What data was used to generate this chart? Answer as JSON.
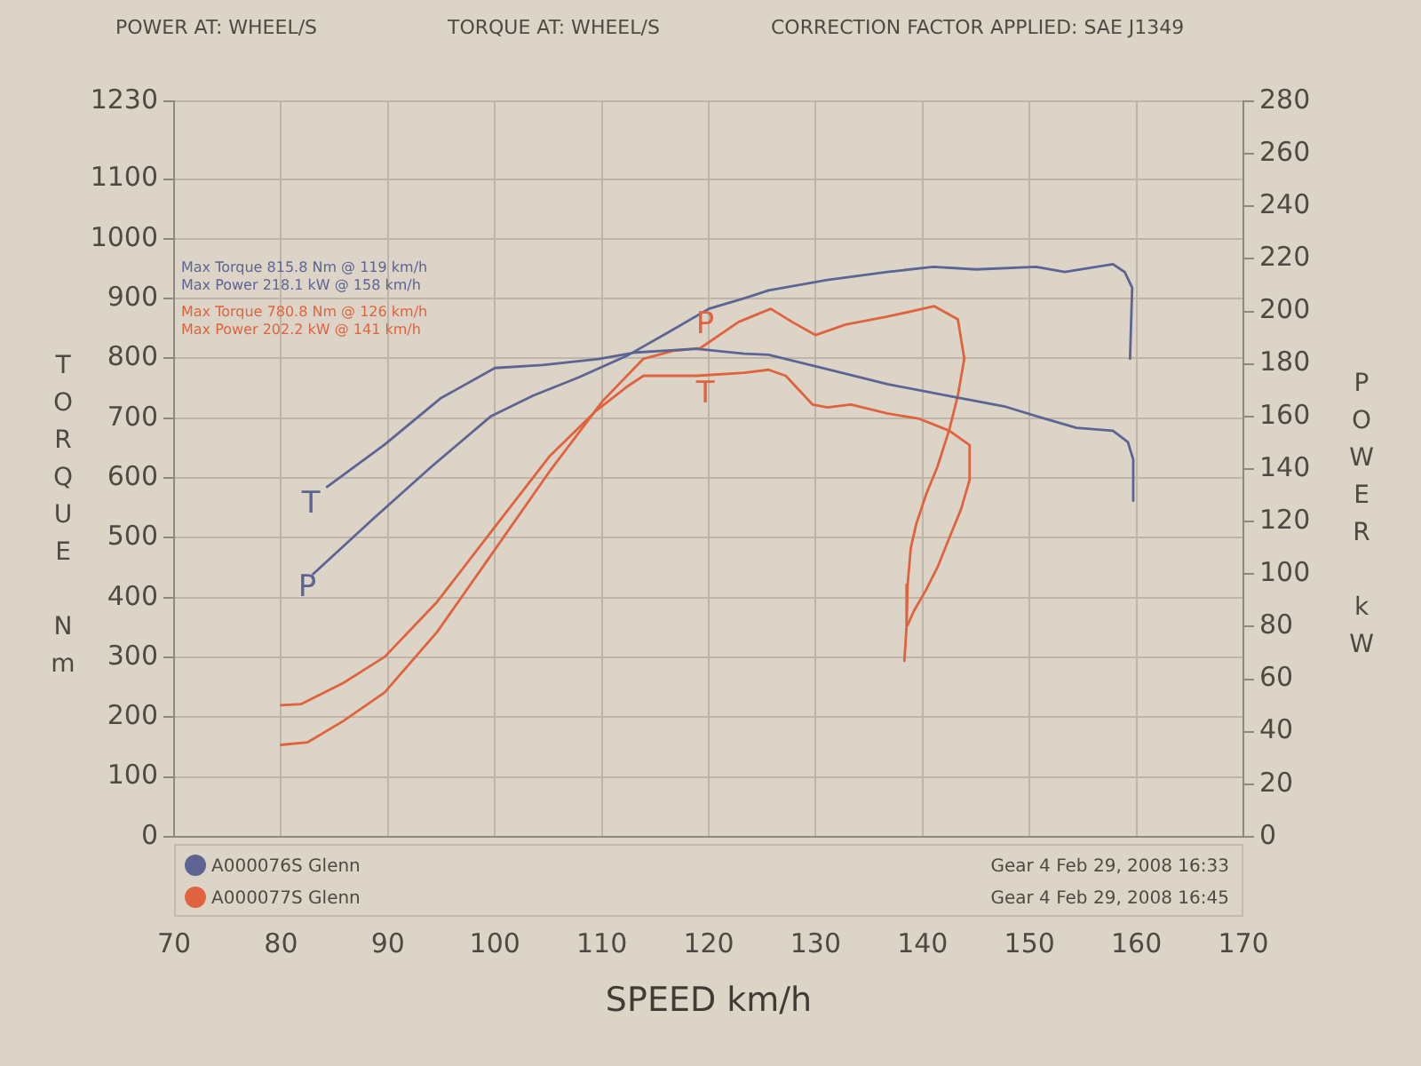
{
  "chart_data": {
    "type": "line",
    "xlabel": "SPEED km/h",
    "ylabel": "TORQUE Nm",
    "y2label": "POWER kW",
    "xlim": [
      70,
      170
    ],
    "xticks": [
      70,
      80,
      90,
      100,
      110,
      120,
      130,
      140,
      150,
      160,
      170
    ],
    "ylim": [
      0,
      1230
    ],
    "yticks": [
      0,
      100,
      200,
      300,
      400,
      500,
      600,
      700,
      800,
      900,
      1000,
      1100,
      1230
    ],
    "y2lim": [
      0,
      280
    ],
    "y2ticks": [
      0,
      20,
      40,
      60,
      80,
      100,
      120,
      140,
      160,
      180,
      200,
      220,
      240,
      260,
      280
    ],
    "grid": true,
    "legend": "bottom left",
    "series": [
      {
        "name": "A000076S Glenn",
        "color": "#5d6494",
        "x": [
          84.3,
          89.7,
          94.9,
          100.0,
          104.5,
          109.7,
          113.2,
          118.8,
          123.3,
          125.6,
          131.1,
          136.7,
          142.2,
          147.8,
          151.1,
          154.4,
          157.8,
          159.2,
          159.7,
          159.7
        ],
        "values": [
          585,
          656,
          733,
          784,
          789,
          799,
          810,
          816,
          808,
          806,
          782,
          757,
          738,
          719,
          701,
          684,
          679,
          660,
          631,
          562
        ]
      },
      {
        "color": "#5d6494",
        "axis": "y2",
        "x": [
          83.0,
          88.6,
          94.1,
          99.6,
          103.6,
          107.9,
          112.3,
          116.2,
          120.0,
          123.3,
          125.6,
          131.1,
          136.7,
          141.0,
          145.0,
          150.6,
          153.3,
          157.8,
          158.9,
          159.6,
          159.4
        ],
        "values": [
          100,
          121,
          141,
          160,
          168,
          175,
          183,
          192,
          201,
          205,
          208,
          212,
          215,
          217,
          216,
          217,
          215,
          218,
          215,
          209,
          182
        ]
      },
      {
        "name": "A000077S Glenn",
        "color": "#e0623e",
        "x": [
          80.0,
          81.9,
          85.8,
          89.7,
          94.6,
          99.6,
          105.1,
          109.5,
          112.3,
          113.9,
          118.9,
          123.3,
          125.6,
          127.2,
          129.7,
          131.1,
          133.3,
          136.7,
          139.7,
          142.5,
          144.4,
          144.4,
          143.6,
          142.5,
          141.4,
          140.3,
          139.2,
          138.6
        ],
        "values": [
          220,
          222,
          257,
          301,
          393,
          509,
          636,
          713,
          752,
          771,
          771,
          776,
          781,
          771,
          723,
          718,
          723,
          708,
          699,
          679,
          655,
          597,
          548,
          500,
          451,
          412,
          378,
          354
        ]
      },
      {
        "color": "#e0623e",
        "axis": "y2",
        "x": [
          80.0,
          82.5,
          85.8,
          89.7,
          94.6,
          99.6,
          105.1,
          110.1,
          113.9,
          116.7,
          119.2,
          122.8,
          125.8,
          127.8,
          130.0,
          132.8,
          136.7,
          141.1,
          143.3,
          143.9,
          143.3,
          142.5,
          141.4,
          140.3,
          139.4,
          138.9,
          138.6,
          138.5,
          138.3
        ],
        "values": [
          35,
          36,
          44,
          55,
          78,
          107,
          139,
          166,
          182,
          185,
          186,
          196,
          201,
          196,
          191,
          195,
          198,
          202,
          197,
          182,
          168,
          155,
          141,
          130,
          119,
          110,
          96,
          80,
          67
        ]
      }
    ],
    "annotations": [
      "POWER AT: WHEEL/S",
      "TORQUE AT: WHEEL/S",
      "CORRECTION FACTOR APPLIED: SAE J1349",
      "Max Torque 815.8 Nm @ 119 km/h",
      "Max Power 218.1 kW @ 158 km/h",
      "Max Torque 780.8 Nm @ 126 km/h",
      "Max Power 202.2 kW @ 141 km/h",
      "Gear 4 Feb 29, 2008 16:33",
      "Gear 4 Feb 29, 2008 16:45",
      "T",
      "P",
      "T",
      "P"
    ]
  }
}
